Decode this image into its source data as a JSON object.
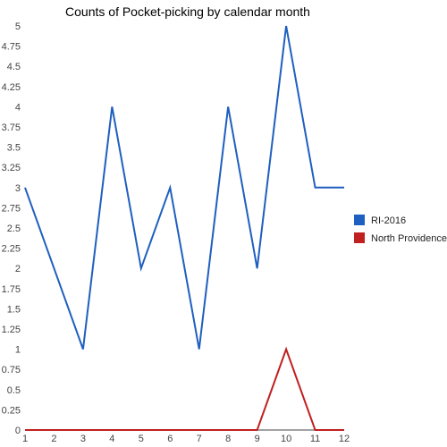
{
  "chart_data": {
    "type": "line",
    "title": "Counts of Pocket-picking by calendar month",
    "xlabel": "",
    "ylabel": "",
    "x": [
      1,
      2,
      3,
      4,
      5,
      6,
      7,
      8,
      9,
      10,
      11,
      12
    ],
    "x_tick_labels": [
      "1",
      "2",
      "3",
      "4",
      "5",
      "6",
      "7",
      "8",
      "9",
      "10",
      "11",
      "12"
    ],
    "y_tick_labels": [
      "0",
      "0.25",
      "0.5",
      "0.75",
      "1",
      "1.25",
      "1.5",
      "1.75",
      "2",
      "2.25",
      "2.5",
      "2.75",
      "3",
      "3.25",
      "3.5",
      "3.75",
      "4",
      "4.25",
      "4.5",
      "4.75",
      "5"
    ],
    "ylim": [
      0,
      5
    ],
    "xlim": [
      1,
      12
    ],
    "grid": false,
    "legend_position": "right",
    "series": [
      {
        "name": "RI-2016",
        "color": "#1f5fbf",
        "values": [
          3,
          2,
          1,
          4,
          2,
          3,
          1,
          4,
          2,
          5,
          3,
          3
        ]
      },
      {
        "name": "North Providence",
        "color": "#c02020",
        "values": [
          0,
          0,
          0,
          0,
          0,
          0,
          0,
          0,
          0,
          1,
          0,
          0
        ]
      }
    ]
  }
}
